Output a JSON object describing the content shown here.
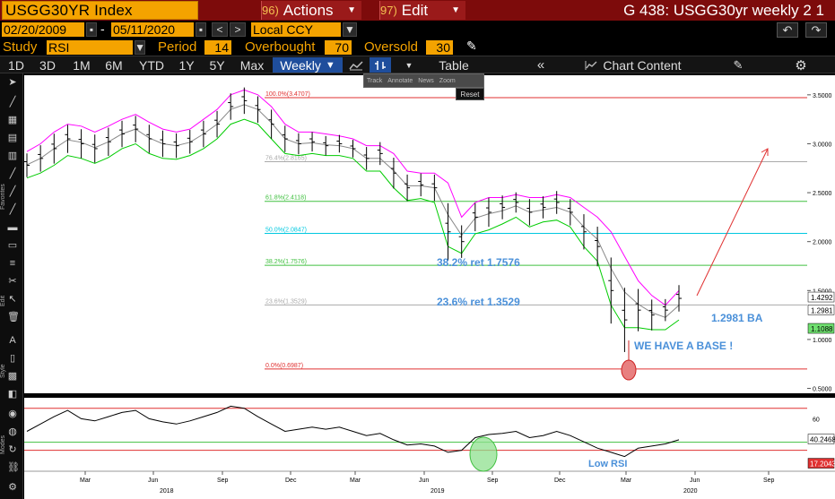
{
  "header": {
    "ticker": "USGG30YR Index",
    "actions": {
      "num": "96)",
      "label": "Actions"
    },
    "edit": {
      "num": "97)",
      "label": "Edit"
    },
    "right_title": "G 438: USGG30yr weekly 2 1"
  },
  "range": {
    "start": "02/20/2009",
    "end": "05/11/2020",
    "currency": "Local CCY",
    "nav_left": "<",
    "nav_right": ">"
  },
  "study": {
    "label": "Study",
    "value": "RSI",
    "period_label": "Period",
    "period": "14",
    "overbought_label": "Overbought",
    "overbought": "70",
    "oversold_label": "Oversold",
    "oversold": "30"
  },
  "toolbar": {
    "timeframes": [
      "1D",
      "3D",
      "1M",
      "6M",
      "YTD",
      "1Y",
      "5Y",
      "Max"
    ],
    "frequency": "Weekly",
    "table": "Table",
    "chart_content": "Chart Content",
    "popup": [
      "Track",
      "Annotate",
      "News",
      "Zoom"
    ],
    "reset": "Reset"
  },
  "side_labels": {
    "favorites": "Favorites",
    "edit": "Edit",
    "style": "Style",
    "modes": "Modes"
  },
  "icons": [
    "undo-icon",
    "redo-icon",
    "pencil-icon",
    "line-chart-icon",
    "bar-chart-icon",
    "chevrons-left-icon",
    "chart-content-icon",
    "edit-icon",
    "gear-icon"
  ],
  "colors": {
    "bg": "#ffffff",
    "price": "#000000",
    "upper_band": "#ff00ff",
    "lower_band": "#00cc00",
    "ma": "#888888",
    "fib_red": "#e03030",
    "fib_green": "#40c040",
    "fib_cyan": "#00c8e0",
    "fib_gray": "#aaaaaa",
    "annot": "#4a90d9"
  },
  "chart_data": [
    {
      "type": "line",
      "name": "USGG30YR weekly price",
      "x_axis_months": [
        "Mar",
        "Jun",
        "Sep",
        "Dec",
        "Mar",
        "Jun",
        "Sep",
        "Dec",
        "Mar",
        "Jun",
        "Sep"
      ],
      "x_axis_years": [
        "2018",
        "2019",
        "2020"
      ],
      "y_ticks": [
        "3.5000",
        "3.0000",
        "2.5000",
        "2.0000",
        "1.5000",
        "1.0000",
        "0.5000"
      ],
      "ylim": [
        0.45,
        3.7
      ],
      "fib_levels": [
        {
          "label": "100.0%(3.4707)",
          "value": 3.4707
        },
        {
          "label": "76.4%(2.8165)",
          "value": 2.8165
        },
        {
          "label": "61.8%(2.4118)",
          "value": 2.4118
        },
        {
          "label": "50.0%(2.0847)",
          "value": 2.0847
        },
        {
          "label": "38.2%(1.7576)",
          "value": 1.7576
        },
        {
          "label": "23.6%(1.3529)",
          "value": 1.3529
        },
        {
          "label": "0.0%(0.6987)",
          "value": 0.6987
        }
      ],
      "annotations": [
        "38.2% ret 1.7576",
        "23.6% ret 1.3529",
        "1.2981 BA",
        "WE HAVE A BASE !"
      ],
      "right_labels": [
        {
          "label": "1.4292",
          "value": 1.4292
        },
        {
          "label": "1.2981",
          "value": 1.2981
        },
        {
          "label": "1.1088",
          "value": 1.1088
        }
      ],
      "close": [
        2.78,
        2.85,
        2.95,
        3.05,
        3.0,
        2.95,
        3.02,
        3.1,
        3.15,
        3.05,
        3.0,
        2.98,
        3.02,
        3.1,
        3.2,
        3.38,
        3.44,
        3.35,
        3.2,
        3.05,
        3.0,
        3.02,
        2.98,
        3.0,
        2.95,
        2.85,
        2.9,
        2.7,
        2.55,
        2.58,
        2.55,
        2.1,
        2.0,
        2.25,
        2.3,
        2.35,
        2.4,
        2.3,
        2.35,
        2.4,
        2.3,
        2.1,
        1.95,
        1.5,
        1.2,
        1.3,
        1.25,
        1.3,
        1.42
      ],
      "upper": [
        2.92,
        3.0,
        3.12,
        3.2,
        3.18,
        3.12,
        3.18,
        3.25,
        3.3,
        3.22,
        3.15,
        3.12,
        3.15,
        3.25,
        3.35,
        3.5,
        3.55,
        3.5,
        3.38,
        3.2,
        3.12,
        3.12,
        3.1,
        3.08,
        3.05,
        2.98,
        2.98,
        2.9,
        2.72,
        2.7,
        2.7,
        2.6,
        2.25,
        2.4,
        2.45,
        2.45,
        2.48,
        2.45,
        2.45,
        2.48,
        2.45,
        2.35,
        2.25,
        2.1,
        1.85,
        1.6,
        1.45,
        1.35,
        1.5
      ],
      "lower": [
        2.65,
        2.7,
        2.78,
        2.88,
        2.85,
        2.8,
        2.86,
        2.95,
        3.0,
        2.9,
        2.85,
        2.84,
        2.88,
        2.95,
        3.05,
        3.2,
        3.25,
        3.2,
        3.05,
        2.9,
        2.88,
        2.9,
        2.88,
        2.88,
        2.85,
        2.72,
        2.72,
        2.55,
        2.42,
        2.44,
        2.4,
        1.95,
        1.88,
        2.08,
        2.12,
        2.18,
        2.25,
        2.15,
        2.2,
        2.22,
        2.15,
        1.95,
        1.8,
        1.35,
        1.12,
        1.12,
        1.1,
        1.1,
        1.2
      ]
    },
    {
      "type": "line",
      "name": "RSI",
      "y_ticks": [
        "60"
      ],
      "right_labels": [
        {
          "label": "40.2468",
          "value": 40.2468
        },
        {
          "label": "17.2043",
          "value": 17.2043
        }
      ],
      "annotations": [
        "Low RSI"
      ],
      "levels": [
        70,
        30
      ],
      "ylim": [
        10,
        80
      ],
      "values": [
        48,
        55,
        62,
        68,
        60,
        58,
        62,
        66,
        68,
        60,
        57,
        55,
        58,
        62,
        66,
        72,
        70,
        62,
        55,
        48,
        50,
        52,
        50,
        52,
        48,
        44,
        46,
        40,
        35,
        36,
        34,
        28,
        30,
        42,
        45,
        46,
        48,
        42,
        44,
        48,
        44,
        38,
        32,
        28,
        24,
        32,
        34,
        36,
        40
      ]
    }
  ]
}
